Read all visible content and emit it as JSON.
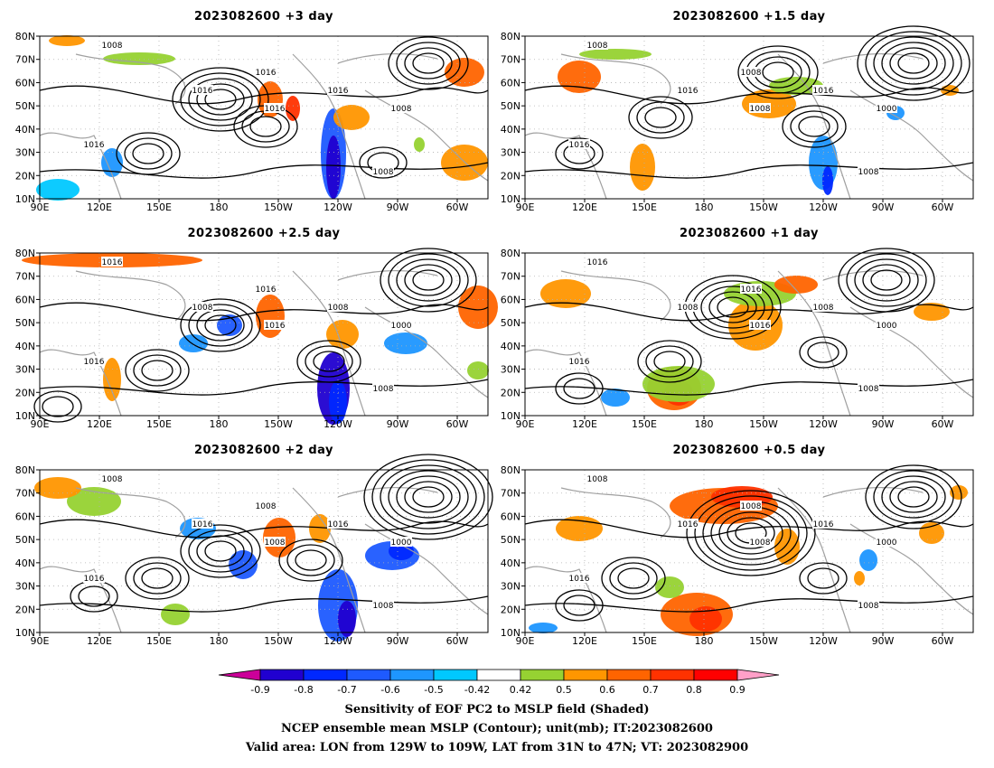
{
  "panels": [
    {
      "title": "2023082600 +3 day",
      "contour_labels": [
        "1008",
        "1016",
        "1016",
        "1016",
        "1016",
        "1008",
        "1016",
        "1008"
      ]
    },
    {
      "title": "2023082600 +1.5 day",
      "contour_labels": [
        "1008",
        "1016",
        "1008",
        "1016",
        "1008",
        "1000",
        "1016",
        "1008"
      ]
    },
    {
      "title": "2023082600 +2.5 day",
      "contour_labels": [
        "1016",
        "1008",
        "1016",
        "1008",
        "1016",
        "1000",
        "1016",
        "1008"
      ]
    },
    {
      "title": "2023082600 +1 day",
      "contour_labels": [
        "1016",
        "1008",
        "1016",
        "1008",
        "1016",
        "1000",
        "1016",
        "1008"
      ]
    },
    {
      "title": "2023082600 +2 day",
      "contour_labels": [
        "1008",
        "1016",
        "1008",
        "1016",
        "1008",
        "1000",
        "1016",
        "1008"
      ]
    },
    {
      "title": "2023082600 +0.5 day",
      "contour_labels": [
        "1008",
        "1016",
        "1008",
        "1016",
        "1008",
        "1000",
        "1016",
        "1008"
      ]
    }
  ],
  "y_ticks": [
    "80N",
    "70N",
    "60N",
    "50N",
    "40N",
    "30N",
    "20N",
    "10N"
  ],
  "x_ticks": [
    "90E",
    "120E",
    "150E",
    "180",
    "150W",
    "120W",
    "90W",
    "60W"
  ],
  "colorbar": {
    "tick_labels": [
      "-0.9",
      "-0.8",
      "-0.7",
      "-0.6",
      "-0.5",
      "-0.42",
      "0.42",
      "0.5",
      "0.6",
      "0.7",
      "0.8",
      "0.9"
    ],
    "colors": [
      "#7800ff",
      "#2000d0",
      "#0028ff",
      "#1e5aff",
      "#1e96ff",
      "#00c8ff",
      "#ffffff",
      "#96d232",
      "#ff9600",
      "#ff6400",
      "#ff3200",
      "#ff0000",
      "#ffa0c8"
    ],
    "low_arrow_color": "#cc0099",
    "high_arrow_color": "#ffa0c8"
  },
  "caption": {
    "line1": "Sensitivity of EOF PC2 to MSLP field (Shaded)",
    "line2": "NCEP ensemble mean MSLP (Contour); unit(mb); IT:2023082600",
    "line3": "Valid area: LON from 129W to 109W, LAT from 31N to 47N; VT: 2023082900"
  }
}
